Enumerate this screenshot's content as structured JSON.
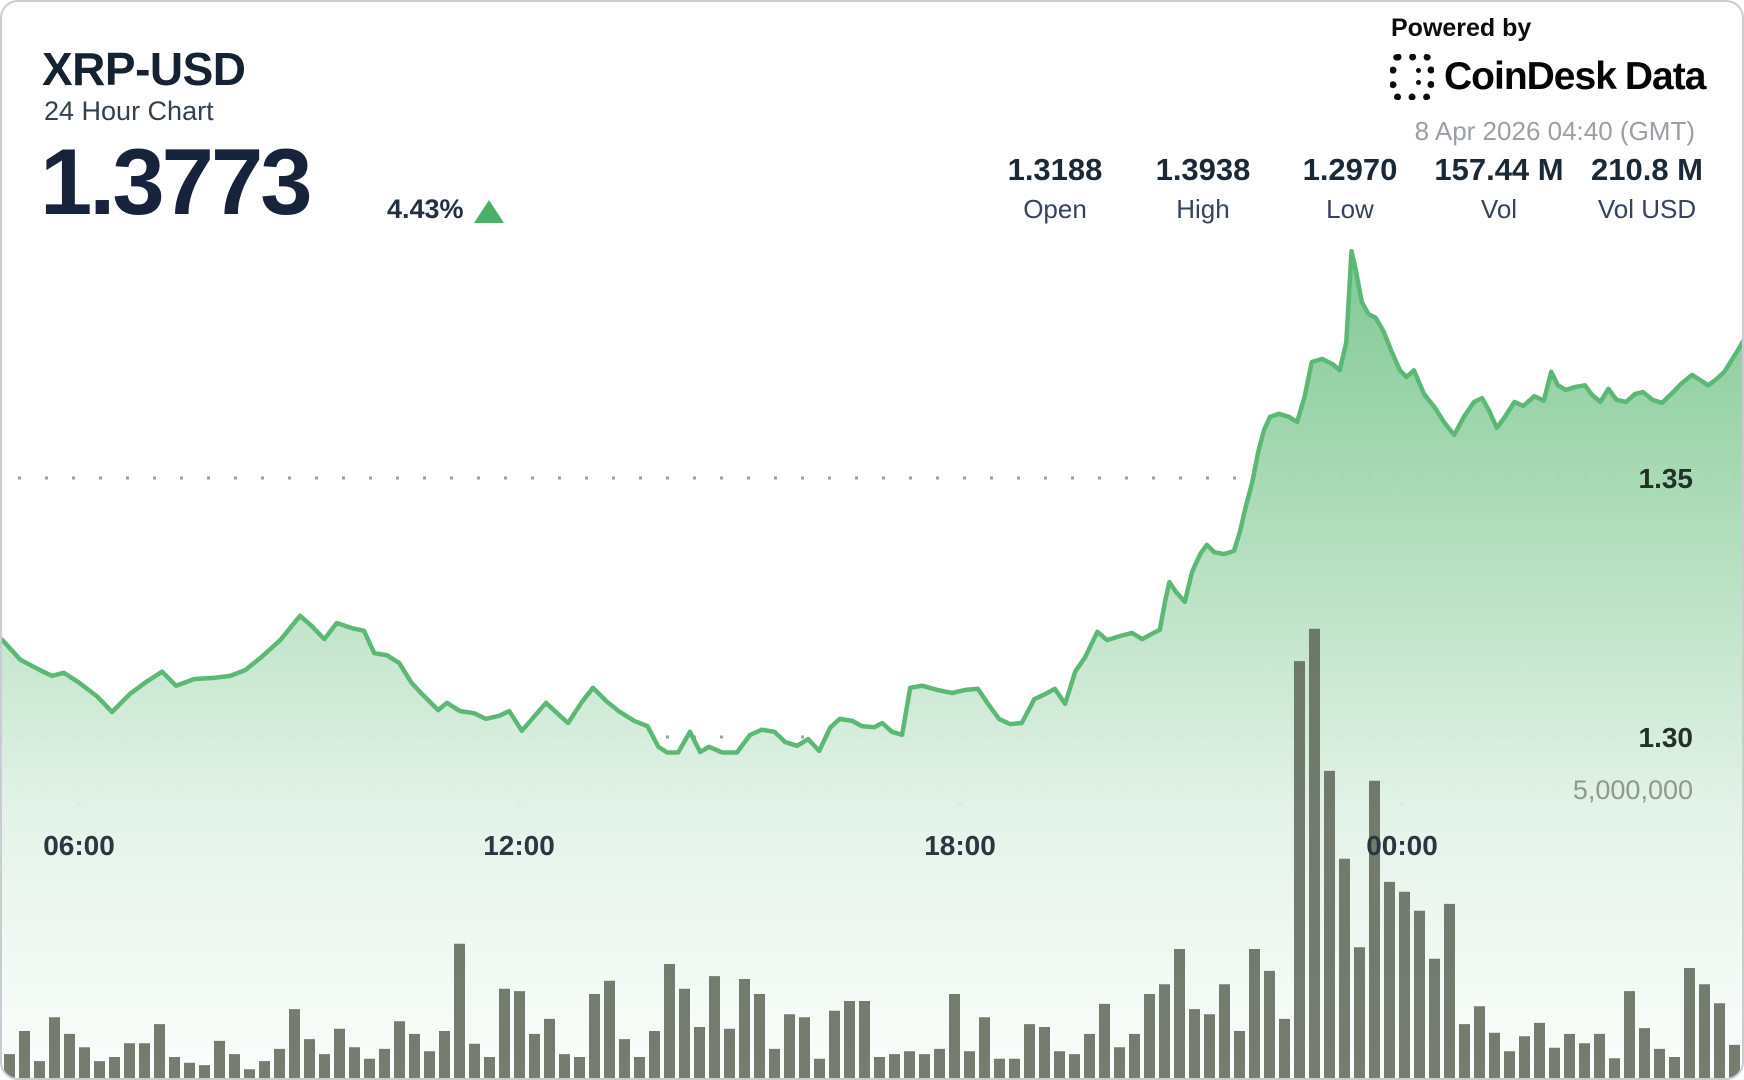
{
  "header": {
    "symbol": "XRP-USD",
    "subtitle": "24 Hour Chart",
    "price": "1.3773",
    "change_pct": "4.43%",
    "direction_icon": "up-triangle"
  },
  "powered_by": {
    "label": "Powered by",
    "brand_word1": "CoinDesk",
    "brand_word2": "Data",
    "logo_icon": "coindesk-dotted-square",
    "timestamp": "8 Apr 2026 04:40 (GMT)"
  },
  "stats": [
    {
      "value": "1.3188",
      "label": "Open"
    },
    {
      "value": "1.3938",
      "label": "High"
    },
    {
      "value": "1.2970",
      "label": "Low"
    },
    {
      "value": "157.44 M",
      "label": "Vol"
    },
    {
      "value": "210.8 M",
      "label": "Vol USD"
    }
  ],
  "colors": {
    "accent_stripe": "#54b167",
    "line": "#5cb874",
    "fill_top": "#79c58e",
    "fill_mid": "#a9dab5",
    "fill_low": "#e2f2e7",
    "fill_bottom": "#fcfefc",
    "volume_bar": "#5a6355",
    "grid_dot": "#95a698",
    "up_triangle": "#4caf66"
  },
  "chart_data": {
    "type": "line+bar",
    "title": "XRP-USD 24 Hour Chart",
    "legend": "none",
    "grid": "dotted horizontal",
    "x_axis": {
      "unit": "time of day (GMT)",
      "span_hours": 23.75,
      "ticks": [
        {
          "label": "06:00",
          "t": 1.05
        },
        {
          "label": "12:00",
          "t": 7.04
        },
        {
          "label": "18:00",
          "t": 13.05
        },
        {
          "label": "00:00",
          "t": 19.07
        }
      ]
    },
    "y_axis_price": {
      "ticks": [
        {
          "label": "1.35",
          "value": 1.35
        },
        {
          "label": "1.30",
          "value": 1.3
        }
      ]
    },
    "y_axis_volume": {
      "ticks": [
        {
          "label": "5,000,000",
          "value_millions": 5
        }
      ]
    },
    "price_series": [
      [
        0,
        1.3188
      ],
      [
        0.25,
        1.3149
      ],
      [
        0.52,
        1.3129
      ],
      [
        0.68,
        1.3118
      ],
      [
        0.84,
        1.3124
      ],
      [
        1.04,
        1.3106
      ],
      [
        1.29,
        1.3079
      ],
      [
        1.5,
        1.3048
      ],
      [
        1.74,
        1.3083
      ],
      [
        1.98,
        1.3108
      ],
      [
        2.18,
        1.3126
      ],
      [
        2.37,
        1.3099
      ],
      [
        2.62,
        1.3112
      ],
      [
        2.89,
        1.3114
      ],
      [
        3.11,
        1.3118
      ],
      [
        3.31,
        1.3129
      ],
      [
        3.54,
        1.3155
      ],
      [
        3.79,
        1.3187
      ],
      [
        4.06,
        1.3234
      ],
      [
        4.22,
        1.3214
      ],
      [
        4.39,
        1.3189
      ],
      [
        4.56,
        1.322
      ],
      [
        4.77,
        1.321
      ],
      [
        4.93,
        1.3205
      ],
      [
        5.07,
        1.3162
      ],
      [
        5.24,
        1.3158
      ],
      [
        5.41,
        1.3143
      ],
      [
        5.58,
        1.3104
      ],
      [
        5.72,
        1.3083
      ],
      [
        5.94,
        1.3052
      ],
      [
        6.06,
        1.3066
      ],
      [
        6.24,
        1.305
      ],
      [
        6.43,
        1.3046
      ],
      [
        6.59,
        1.3035
      ],
      [
        6.77,
        1.3041
      ],
      [
        6.91,
        1.305
      ],
      [
        7.08,
        1.3012
      ],
      [
        7.27,
        1.3043
      ],
      [
        7.41,
        1.3066
      ],
      [
        7.6,
        1.3041
      ],
      [
        7.71,
        1.3027
      ],
      [
        7.9,
        1.3068
      ],
      [
        8.05,
        1.3095
      ],
      [
        8.24,
        1.3068
      ],
      [
        8.4,
        1.305
      ],
      [
        8.61,
        1.3031
      ],
      [
        8.79,
        1.3021
      ],
      [
        8.94,
        1.2981
      ],
      [
        9.06,
        1.297
      ],
      [
        9.21,
        1.297
      ],
      [
        9.37,
        1.301
      ],
      [
        9.51,
        1.2971
      ],
      [
        9.63,
        1.2981
      ],
      [
        9.81,
        1.297
      ],
      [
        10.01,
        1.297
      ],
      [
        10.19,
        1.3004
      ],
      [
        10.35,
        1.3014
      ],
      [
        10.52,
        1.301
      ],
      [
        10.67,
        1.299
      ],
      [
        10.83,
        1.2983
      ],
      [
        10.98,
        1.2996
      ],
      [
        11.13,
        1.2973
      ],
      [
        11.28,
        1.3018
      ],
      [
        11.41,
        1.3035
      ],
      [
        11.58,
        1.3031
      ],
      [
        11.71,
        1.3021
      ],
      [
        11.88,
        1.3019
      ],
      [
        11.99,
        1.3027
      ],
      [
        12.12,
        1.301
      ],
      [
        12.26,
        1.3004
      ],
      [
        12.37,
        1.3095
      ],
      [
        12.53,
        1.3099
      ],
      [
        12.74,
        1.3091
      ],
      [
        12.94,
        1.3085
      ],
      [
        13.12,
        1.3091
      ],
      [
        13.29,
        1.3093
      ],
      [
        13.43,
        1.3064
      ],
      [
        13.58,
        1.3035
      ],
      [
        13.73,
        1.3025
      ],
      [
        13.89,
        1.3027
      ],
      [
        14.06,
        1.3073
      ],
      [
        14.21,
        1.3083
      ],
      [
        14.34,
        1.3093
      ],
      [
        14.48,
        1.3064
      ],
      [
        14.62,
        1.3127
      ],
      [
        14.75,
        1.3153
      ],
      [
        14.92,
        1.3203
      ],
      [
        15.05,
        1.3187
      ],
      [
        15.23,
        1.3195
      ],
      [
        15.39,
        1.3201
      ],
      [
        15.53,
        1.3189
      ],
      [
        15.66,
        1.3199
      ],
      [
        15.77,
        1.3207
      ],
      [
        15.84,
        1.3261
      ],
      [
        15.9,
        1.3299
      ],
      [
        15.99,
        1.328
      ],
      [
        16.11,
        1.3261
      ],
      [
        16.21,
        1.3319
      ],
      [
        16.32,
        1.3353
      ],
      [
        16.41,
        1.3371
      ],
      [
        16.51,
        1.3357
      ],
      [
        16.64,
        1.3353
      ],
      [
        16.78,
        1.3359
      ],
      [
        16.86,
        1.3396
      ],
      [
        16.94,
        1.3444
      ],
      [
        17.03,
        1.3492
      ],
      [
        17.11,
        1.355
      ],
      [
        17.19,
        1.3593
      ],
      [
        17.27,
        1.3618
      ],
      [
        17.39,
        1.3624
      ],
      [
        17.53,
        1.3618
      ],
      [
        17.64,
        1.3608
      ],
      [
        17.74,
        1.3656
      ],
      [
        17.84,
        1.3724
      ],
      [
        17.98,
        1.373
      ],
      [
        18.12,
        1.372
      ],
      [
        18.22,
        1.3708
      ],
      [
        18.31,
        1.3762
      ],
      [
        18.38,
        1.3938
      ],
      [
        18.44,
        1.3901
      ],
      [
        18.52,
        1.384
      ],
      [
        18.61,
        1.3817
      ],
      [
        18.71,
        1.3809
      ],
      [
        18.82,
        1.3782
      ],
      [
        18.93,
        1.3743
      ],
      [
        19.04,
        1.3708
      ],
      [
        19.13,
        1.3695
      ],
      [
        19.23,
        1.3708
      ],
      [
        19.37,
        1.3662
      ],
      [
        19.51,
        1.3637
      ],
      [
        19.64,
        1.3608
      ],
      [
        19.78,
        1.3583
      ],
      [
        19.91,
        1.3618
      ],
      [
        20.05,
        1.3647
      ],
      [
        20.16,
        1.3654
      ],
      [
        20.25,
        1.3631
      ],
      [
        20.36,
        1.3597
      ],
      [
        20.47,
        1.3618
      ],
      [
        20.6,
        1.3647
      ],
      [
        20.72,
        1.3639
      ],
      [
        20.87,
        1.3658
      ],
      [
        21,
        1.3649
      ],
      [
        21.1,
        1.3705
      ],
      [
        21.19,
        1.3679
      ],
      [
        21.3,
        1.367
      ],
      [
        21.44,
        1.3676
      ],
      [
        21.56,
        1.3679
      ],
      [
        21.66,
        1.366
      ],
      [
        21.77,
        1.3647
      ],
      [
        21.88,
        1.3672
      ],
      [
        21.99,
        1.3651
      ],
      [
        22.12,
        1.3647
      ],
      [
        22.24,
        1.3662
      ],
      [
        22.35,
        1.3666
      ],
      [
        22.48,
        1.3651
      ],
      [
        22.61,
        1.3645
      ],
      [
        22.75,
        1.3664
      ],
      [
        22.88,
        1.3683
      ],
      [
        23.02,
        1.3699
      ],
      [
        23.13,
        1.3689
      ],
      [
        23.24,
        1.3679
      ],
      [
        23.35,
        1.3691
      ],
      [
        23.46,
        1.3705
      ],
      [
        23.56,
        1.3728
      ],
      [
        23.67,
        1.3753
      ],
      [
        23.75,
        1.3773
      ]
    ],
    "volume_first_t": 0.102,
    "volume_interval_t": 0.2043,
    "volume_bars_millions": [
      0.43,
      0.83,
      0.31,
      1.07,
      0.78,
      0.55,
      0.31,
      0.38,
      0.62,
      0.62,
      0.95,
      0.38,
      0.28,
      0.24,
      0.66,
      0.43,
      0.17,
      0.31,
      0.52,
      1.21,
      0.69,
      0.43,
      0.87,
      0.55,
      0.35,
      0.52,
      1.0,
      0.78,
      0.48,
      0.83,
      2.34,
      0.61,
      0.38,
      1.56,
      1.52,
      0.78,
      1.04,
      0.43,
      0.38,
      1.47,
      1.7,
      0.69,
      0.38,
      0.83,
      1.99,
      1.56,
      0.9,
      1.78,
      0.87,
      1.73,
      1.47,
      0.52,
      1.12,
      1.07,
      0.35,
      1.18,
      1.35,
      1.35,
      0.38,
      0.43,
      0.48,
      0.43,
      0.52,
      1.47,
      0.48,
      1.07,
      0.35,
      0.35,
      0.95,
      0.9,
      0.48,
      0.43,
      0.78,
      1.3,
      0.55,
      0.78,
      1.47,
      1.64,
      2.25,
      1.21,
      1.12,
      1.64,
      0.83,
      2.25,
      1.87,
      1.04,
      7.23,
      7.79,
      5.33,
      3.81,
      2.28,
      5.16,
      3.41,
      3.24,
      2.91,
      2.08,
      3.03,
      0.95,
      1.26,
      0.8,
      0.48,
      0.74,
      0.97,
      0.54,
      0.78,
      0.62,
      0.78,
      0.36,
      1.52,
      0.88,
      0.52,
      0.38,
      1.92,
      1.64,
      1.31,
      0.59
    ]
  }
}
